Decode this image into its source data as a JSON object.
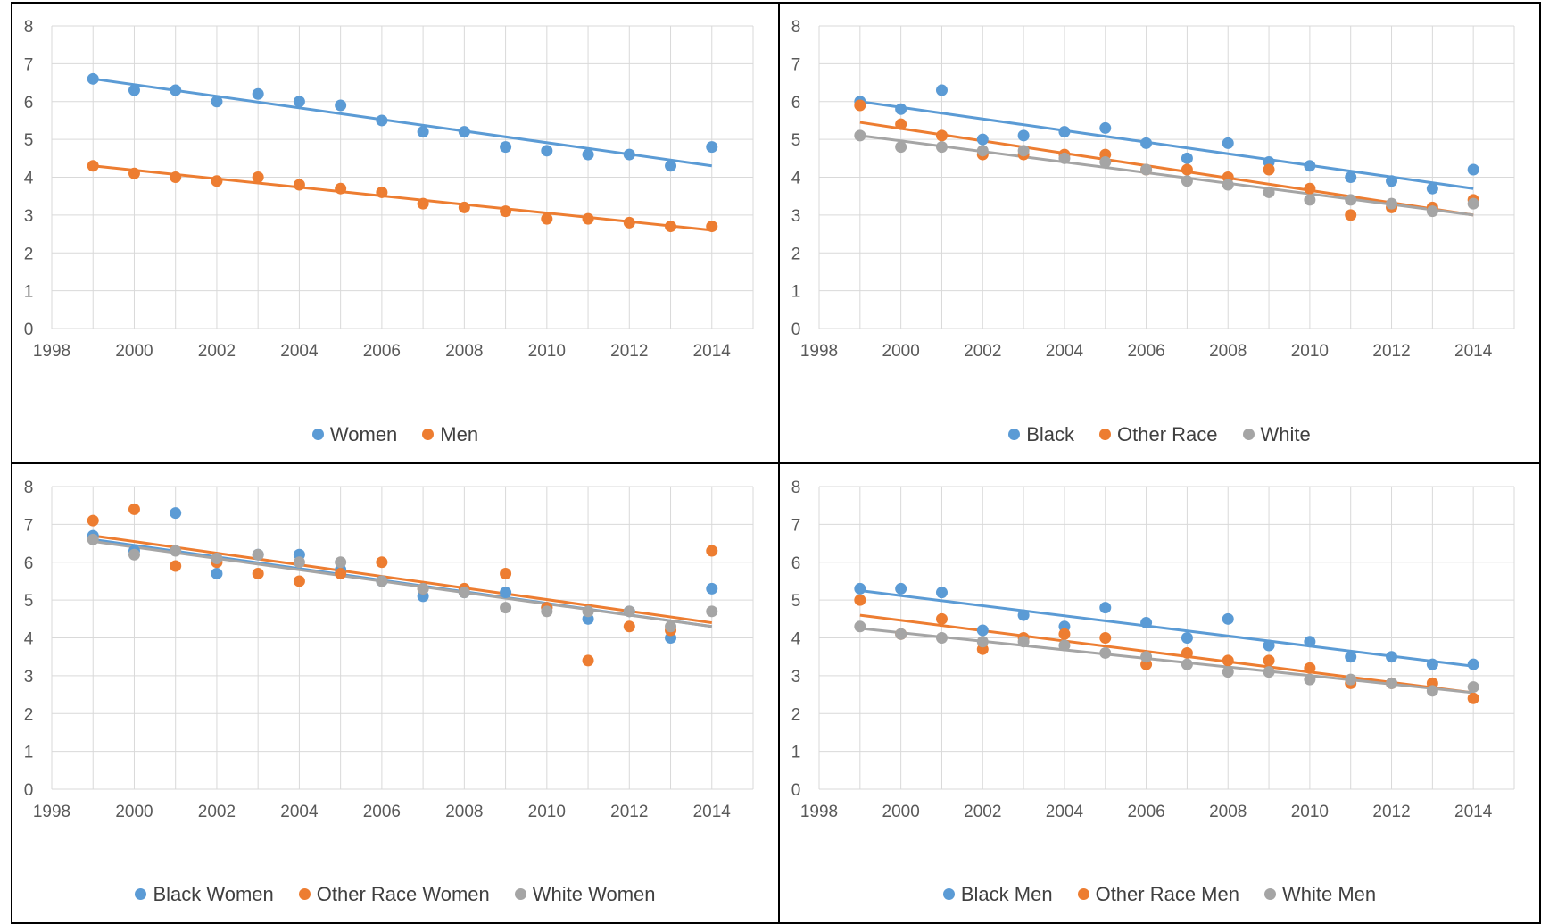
{
  "colors": {
    "blue": "#5b9bd5",
    "orange": "#ed7d31",
    "gray": "#a5a5a5",
    "grid": "#d9d9d9",
    "axis_text": "#595959"
  },
  "chart_data": [
    {
      "type": "scatter",
      "trendline": "linear",
      "x": [
        1999,
        2000,
        2001,
        2002,
        2003,
        2004,
        2005,
        2006,
        2007,
        2008,
        2009,
        2010,
        2011,
        2012,
        2013,
        2014
      ],
      "xlim": [
        1998,
        2015
      ],
      "ylim": [
        0,
        8
      ],
      "xticks": [
        "1998",
        "2000",
        "2002",
        "2004",
        "2006",
        "2008",
        "2010",
        "2012",
        "2014"
      ],
      "yticks": [
        "0",
        "1",
        "2",
        "3",
        "4",
        "5",
        "6",
        "7",
        "8"
      ],
      "grid": true,
      "legend": "bottom",
      "series": [
        {
          "name": "Women",
          "color": "#5b9bd5",
          "values": [
            6.6,
            6.3,
            6.3,
            6.0,
            6.2,
            6.0,
            5.9,
            5.5,
            5.2,
            5.2,
            4.8,
            4.7,
            4.6,
            4.6,
            4.3,
            4.8
          ],
          "trend": [
            6.6,
            4.3
          ]
        },
        {
          "name": "Men",
          "color": "#ed7d31",
          "values": [
            4.3,
            4.1,
            4.0,
            3.9,
            4.0,
            3.8,
            3.7,
            3.6,
            3.3,
            3.2,
            3.1,
            2.9,
            2.9,
            2.8,
            2.7,
            2.7
          ],
          "trend": [
            4.3,
            2.6
          ]
        }
      ]
    },
    {
      "type": "scatter",
      "trendline": "linear",
      "x": [
        1999,
        2000,
        2001,
        2002,
        2003,
        2004,
        2005,
        2006,
        2007,
        2008,
        2009,
        2010,
        2011,
        2012,
        2013,
        2014
      ],
      "xlim": [
        1998,
        2015
      ],
      "ylim": [
        0,
        8
      ],
      "xticks": [
        "1998",
        "2000",
        "2002",
        "2004",
        "2006",
        "2008",
        "2010",
        "2012",
        "2014"
      ],
      "yticks": [
        "0",
        "1",
        "2",
        "3",
        "4",
        "5",
        "6",
        "7",
        "8"
      ],
      "grid": true,
      "legend": "bottom",
      "series": [
        {
          "name": "Black",
          "color": "#5b9bd5",
          "values": [
            6.0,
            5.8,
            6.3,
            5.0,
            5.1,
            5.2,
            5.3,
            4.9,
            4.5,
            4.9,
            4.4,
            4.3,
            4.0,
            3.9,
            3.7,
            4.2
          ],
          "trend": [
            6.0,
            3.7
          ]
        },
        {
          "name": "Other Race",
          "color": "#ed7d31",
          "values": [
            5.9,
            5.4,
            5.1,
            4.6,
            4.6,
            4.6,
            4.6,
            4.2,
            4.2,
            4.0,
            4.2,
            3.7,
            3.0,
            3.2,
            3.2,
            3.4
          ],
          "trend": [
            5.45,
            3.0
          ]
        },
        {
          "name": "White",
          "color": "#a5a5a5",
          "values": [
            5.1,
            4.8,
            4.8,
            4.7,
            4.7,
            4.5,
            4.4,
            4.2,
            3.9,
            3.8,
            3.6,
            3.4,
            3.4,
            3.3,
            3.1,
            3.3
          ],
          "trend": [
            5.1,
            3.0
          ]
        }
      ]
    },
    {
      "type": "scatter",
      "trendline": "linear",
      "x": [
        1999,
        2000,
        2001,
        2002,
        2003,
        2004,
        2005,
        2006,
        2007,
        2008,
        2009,
        2010,
        2011,
        2012,
        2013,
        2014
      ],
      "xlim": [
        1998,
        2015
      ],
      "ylim": [
        0,
        8
      ],
      "xticks": [
        "1998",
        "2000",
        "2002",
        "2004",
        "2006",
        "2008",
        "2010",
        "2012",
        "2014"
      ],
      "yticks": [
        "0",
        "1",
        "2",
        "3",
        "4",
        "5",
        "6",
        "7",
        "8"
      ],
      "grid": true,
      "legend": "bottom",
      "series": [
        {
          "name": "Black Women",
          "color": "#5b9bd5",
          "values": [
            6.7,
            6.3,
            7.3,
            5.7,
            6.2,
            6.2,
            5.8,
            5.5,
            5.1,
            5.2,
            5.2,
            4.8,
            4.5,
            4.7,
            4.0,
            5.3
          ],
          "trend": [
            6.6,
            4.3
          ]
        },
        {
          "name": "Other Race Women",
          "color": "#ed7d31",
          "values": [
            7.1,
            7.4,
            5.9,
            6.0,
            5.7,
            5.5,
            5.7,
            6.0,
            5.3,
            5.3,
            5.7,
            4.8,
            3.4,
            4.3,
            4.2,
            6.3
          ],
          "trend": [
            6.7,
            4.4
          ]
        },
        {
          "name": "White Women",
          "color": "#a5a5a5",
          "values": [
            6.6,
            6.2,
            6.3,
            6.1,
            6.2,
            6.0,
            6.0,
            5.5,
            5.3,
            5.2,
            4.8,
            4.7,
            4.7,
            4.7,
            4.3,
            4.7
          ],
          "trend": [
            6.55,
            4.3
          ]
        }
      ]
    },
    {
      "type": "scatter",
      "trendline": "linear",
      "x": [
        1999,
        2000,
        2001,
        2002,
        2003,
        2004,
        2005,
        2006,
        2007,
        2008,
        2009,
        2010,
        2011,
        2012,
        2013,
        2014
      ],
      "xlim": [
        1998,
        2015
      ],
      "ylim": [
        0,
        8
      ],
      "xticks": [
        "1998",
        "2000",
        "2002",
        "2004",
        "2006",
        "2008",
        "2010",
        "2012",
        "2014"
      ],
      "yticks": [
        "0",
        "1",
        "2",
        "3",
        "4",
        "5",
        "6",
        "7",
        "8"
      ],
      "grid": true,
      "legend": "bottom",
      "series": [
        {
          "name": "Black Men",
          "color": "#5b9bd5",
          "values": [
            5.3,
            5.3,
            5.2,
            4.2,
            4.6,
            4.3,
            4.8,
            4.4,
            4.0,
            4.5,
            3.8,
            3.9,
            3.5,
            3.5,
            3.3,
            3.3
          ],
          "trend": [
            5.25,
            3.25
          ]
        },
        {
          "name": "Other Race Men",
          "color": "#ed7d31",
          "values": [
            5.0,
            4.1,
            4.5,
            3.7,
            4.0,
            4.1,
            4.0,
            3.3,
            3.6,
            3.4,
            3.4,
            3.2,
            2.8,
            2.8,
            2.8,
            2.4
          ],
          "trend": [
            4.6,
            2.55
          ]
        },
        {
          "name": "White Men",
          "color": "#a5a5a5",
          "values": [
            4.3,
            4.1,
            4.0,
            3.9,
            3.9,
            3.8,
            3.6,
            3.5,
            3.3,
            3.1,
            3.1,
            2.9,
            2.9,
            2.8,
            2.6,
            2.7
          ],
          "trend": [
            4.25,
            2.55
          ]
        }
      ]
    }
  ]
}
